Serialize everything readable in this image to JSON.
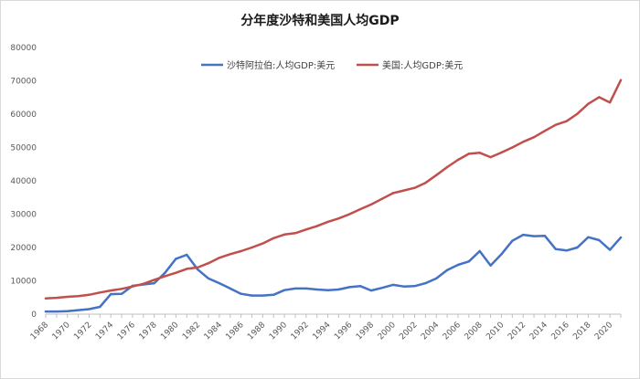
{
  "chart_data": {
    "type": "line",
    "title": "分年度沙特和美国人均GDP",
    "xlabel": "",
    "ylabel": "",
    "ylim": [
      0,
      80000
    ],
    "yticks": [
      "0",
      "10000",
      "20000",
      "30000",
      "40000",
      "50000",
      "60000",
      "70000",
      "80000"
    ],
    "xticks": [
      "1968",
      "1970",
      "1972",
      "1974",
      "1976",
      "1978",
      "1980",
      "1982",
      "1984",
      "1986",
      "1988",
      "1990",
      "1992",
      "1994",
      "1996",
      "1998",
      "2000",
      "2002",
      "2004",
      "2006",
      "2008",
      "2010",
      "2012",
      "2014",
      "2016",
      "2018",
      "2020"
    ],
    "x": [
      1968,
      1969,
      1970,
      1971,
      1972,
      1973,
      1974,
      1975,
      1976,
      1977,
      1978,
      1979,
      1980,
      1981,
      1982,
      1983,
      1984,
      1985,
      1986,
      1987,
      1988,
      1989,
      1990,
      1991,
      1992,
      1993,
      1994,
      1995,
      1996,
      1997,
      1998,
      1999,
      2000,
      2001,
      2002,
      2003,
      2004,
      2005,
      2006,
      2007,
      2008,
      2009,
      2010,
      2011,
      2012,
      2013,
      2014,
      2015,
      2016,
      2017,
      2018,
      2019,
      2020,
      2021
    ],
    "grid": false,
    "legend_position": "top",
    "series": [
      {
        "name": "沙特阿拉伯:人均GDP:美元",
        "color": "#4472c4",
        "values": [
          800,
          800,
          900,
          1200,
          1500,
          2200,
          6000,
          6100,
          8500,
          8900,
          9300,
          12400,
          16600,
          17800,
          13400,
          10700,
          9300,
          7700,
          6100,
          5600,
          5600,
          5800,
          7200,
          7700,
          7700,
          7400,
          7200,
          7400,
          8100,
          8400,
          7100,
          7900,
          8800,
          8300,
          8400,
          9300,
          10700,
          13200,
          14800,
          15800,
          18900,
          14600,
          18000,
          22000,
          23800,
          23400,
          23500,
          19500,
          19100,
          20000,
          23100,
          22200,
          19300,
          23000
        ]
      },
      {
        "name": "美国:人均GDP:美元",
        "color": "#c0504d",
        "values": [
          4700,
          4900,
          5200,
          5400,
          5800,
          6500,
          7100,
          7600,
          8300,
          9100,
          10300,
          11400,
          12400,
          13600,
          14000,
          15300,
          16900,
          18000,
          18900,
          20000,
          21200,
          22800,
          23900,
          24300,
          25400,
          26400,
          27700,
          28700,
          30000,
          31500,
          32900,
          34600,
          36300,
          37100,
          37900,
          39400,
          41700,
          44100,
          46300,
          48100,
          48400,
          47100,
          48500,
          50000,
          51700,
          53100,
          55000,
          56800,
          57900,
          60100,
          63100,
          65100,
          63500,
          70200
        ]
      }
    ]
  }
}
